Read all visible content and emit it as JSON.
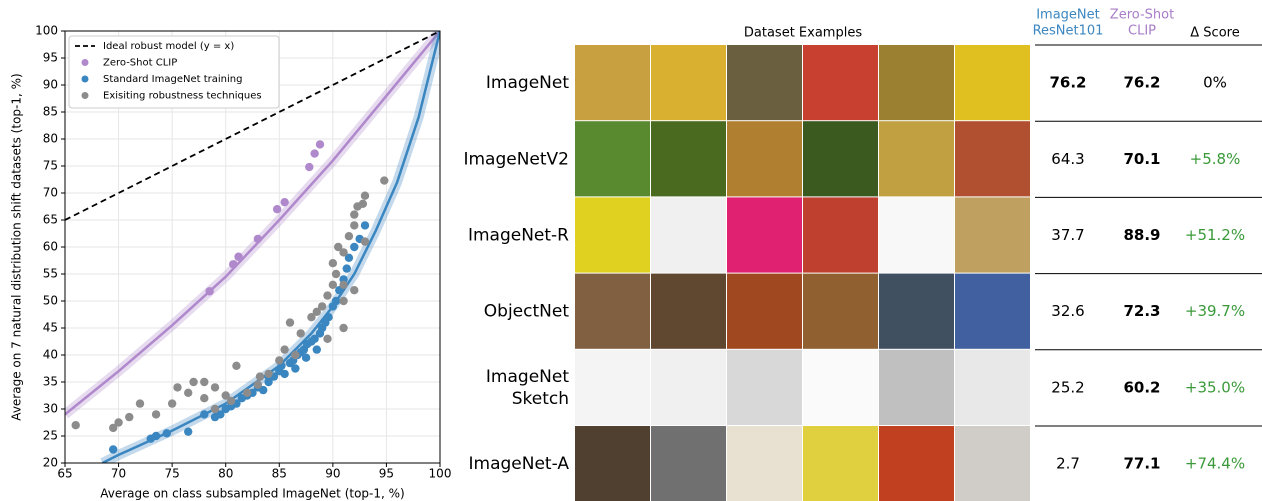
{
  "chart_data": {
    "type": "scatter",
    "xlabel": "Average on class subsampled ImageNet (top-1, %)",
    "ylabel": "Average on 7 natural distribution shift datasets (top-1, %)",
    "xlim": [
      65,
      100
    ],
    "ylim": [
      20,
      100
    ],
    "xticks": [
      65,
      70,
      75,
      80,
      85,
      90,
      95,
      100
    ],
    "yticks": [
      20,
      25,
      30,
      35,
      40,
      45,
      50,
      55,
      60,
      65,
      70,
      75,
      80,
      85,
      90,
      95,
      100
    ],
    "grid": true,
    "legend": "upper left",
    "series": [
      {
        "name": "Ideal robust model (y = x)",
        "kind": "line",
        "dash": true,
        "color": "#000000",
        "x": [
          65,
          100
        ],
        "y": [
          65,
          100
        ]
      },
      {
        "name": "Zero-Shot CLIP",
        "kind": "points",
        "color": "#b088cc",
        "x": [
          78.5,
          80.7,
          81.2,
          83,
          84.8,
          85.5,
          87.8,
          88.3,
          88.8
        ],
        "y": [
          51.8,
          56.8,
          58.2,
          61.5,
          67,
          68.3,
          74.8,
          77.3,
          79
        ]
      },
      {
        "name": "Standard ImageNet training",
        "kind": "points",
        "color": "#3a86c0",
        "x": [
          69.5,
          73,
          73.5,
          74.5,
          76.5,
          78,
          79,
          79.5,
          80,
          80.5,
          81,
          81.5,
          82,
          82.5,
          83,
          83.5,
          84,
          84.5,
          85,
          85.2,
          85.5,
          86,
          86.3,
          86.7,
          87,
          87.3,
          87.6,
          88,
          88.3,
          88.5,
          88.8,
          89,
          89.3,
          89.6,
          90,
          90.3,
          90.6,
          91,
          91.3,
          91.5,
          92,
          92.5,
          93,
          84,
          87.5,
          86.5
        ],
        "y": [
          22.5,
          24.5,
          25,
          25.5,
          25.8,
          29,
          28.5,
          29,
          30,
          30.5,
          31,
          32,
          32.5,
          33,
          34,
          33.5,
          35,
          36,
          37,
          38,
          36.5,
          38.5,
          39,
          40,
          40.5,
          41,
          42,
          42.5,
          43,
          41,
          44,
          45,
          46,
          47,
          49,
          50,
          52,
          54,
          56,
          58,
          60,
          61.5,
          64,
          36,
          39.5,
          37.5
        ]
      },
      {
        "name": "Exisiting robustness techniques",
        "kind": "points",
        "color": "#8c8c8c",
        "x": [
          66,
          69.5,
          70,
          71,
          72,
          73.5,
          75,
          75.5,
          76.5,
          77,
          78,
          78,
          79,
          79,
          80,
          80.5,
          81,
          82,
          83,
          83.2,
          84,
          85,
          85.5,
          86,
          86.5,
          87,
          88,
          88.5,
          89,
          89.5,
          89.5,
          90,
          90,
          90.3,
          90.5,
          91,
          91,
          91.5,
          92,
          92,
          92.3,
          92.8,
          93,
          94.8,
          91,
          91,
          92,
          93
        ],
        "y": [
          27,
          26.5,
          27.5,
          28.5,
          31,
          29,
          31,
          34,
          33,
          35,
          32,
          35,
          30,
          34,
          32.5,
          31.5,
          38,
          33,
          34.5,
          36,
          36.5,
          39,
          41,
          46,
          40,
          44,
          47,
          48,
          49,
          43,
          51,
          53,
          57,
          55,
          60,
          59,
          45,
          62,
          52,
          66,
          67.5,
          68,
          69.5,
          72.3,
          50,
          53,
          64,
          61
        ]
      }
    ],
    "fits": [
      {
        "color": "#b088cc",
        "x": [
          65,
          70,
          75,
          80,
          85,
          90,
          95,
          100
        ],
        "y": [
          29,
          37,
          45.5,
          54.5,
          65,
          76,
          88,
          100
        ]
      },
      {
        "color": "#3a86c0",
        "x": [
          68.5,
          70,
          75,
          80,
          85,
          88,
          90,
          92,
          94,
          96,
          98,
          100
        ],
        "y": [
          20,
          21.5,
          26,
          31,
          38,
          44,
          49,
          55,
          63,
          72,
          84,
          100
        ]
      }
    ]
  },
  "table": {
    "title": "Dataset Examples",
    "columns": [
      [
        "ImageNet",
        "ResNet101"
      ],
      [
        "Zero-Shot",
        "CLIP"
      ],
      [
        "Δ Score"
      ]
    ],
    "column_colors": [
      "#3a86c0",
      "#a87cc8",
      "#000000"
    ],
    "rows": [
      {
        "label": [
          "ImageNet"
        ],
        "cells": [
          76.2,
          76.2,
          "0%"
        ]
      },
      {
        "label": [
          "ImageNetV2"
        ],
        "cells": [
          64.3,
          70.1,
          "+5.8%"
        ]
      },
      {
        "label": [
          "ImageNet-R"
        ],
        "cells": [
          37.7,
          88.9,
          "+51.2%"
        ]
      },
      {
        "label": [
          "ObjectNet"
        ],
        "cells": [
          32.6,
          72.3,
          "+39.7%"
        ]
      },
      {
        "label": [
          "ImageNet",
          "Sketch"
        ],
        "cells": [
          25.2,
          60.2,
          "+35.0%"
        ]
      },
      {
        "label": [
          "ImageNet-A"
        ],
        "cells": [
          2.7,
          77.1,
          "+74.4%"
        ]
      }
    ]
  }
}
